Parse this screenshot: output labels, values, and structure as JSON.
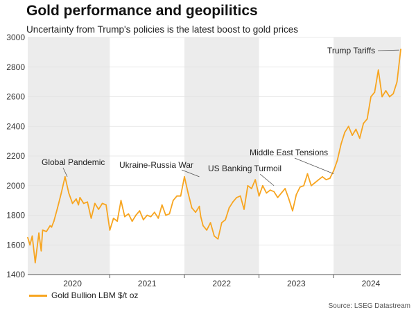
{
  "title": "Gold performance and geopilitics",
  "subtitle": "Uncertainty from Trump's policies is the latest boost to gold prices",
  "source": "Source: LSEG Datastream",
  "colors": {
    "line": "#f7a520",
    "shade": "#ececec",
    "grid": "#e2e2e2",
    "axis": "#555555"
  },
  "chart_data": {
    "type": "line",
    "title": "Gold performance and geopilitics",
    "xlabel": "",
    "ylabel": "",
    "x_range": [
      2019.9,
      2024.9
    ],
    "ylim": [
      1400,
      3000
    ],
    "yticks": [
      1400,
      1600,
      1800,
      2000,
      2200,
      2400,
      2600,
      2800,
      3000
    ],
    "grid": true,
    "legend_position": "bottom-left",
    "xticks": [
      {
        "label": "2020",
        "center": 2020.5
      },
      {
        "label": "2021",
        "center": 2021.5
      },
      {
        "label": "2022",
        "center": 2022.5
      },
      {
        "label": "2023",
        "center": 2023.5
      },
      {
        "label": "2024",
        "center": 2024.5
      }
    ],
    "shaded_periods": [
      [
        2019.9,
        2021.0
      ],
      [
        2022.0,
        2023.0
      ],
      [
        2024.0,
        2024.9
      ]
    ],
    "series": [
      {
        "name": "Gold Bullion LBM $/t oz",
        "x": [
          2019.9,
          2019.93,
          2019.96,
          2020.0,
          2020.05,
          2020.08,
          2020.1,
          2020.15,
          2020.2,
          2020.22,
          2020.25,
          2020.3,
          2020.35,
          2020.4,
          2020.45,
          2020.5,
          2020.55,
          2020.58,
          2020.6,
          2020.65,
          2020.7,
          2020.75,
          2020.8,
          2020.85,
          2020.9,
          2020.95,
          2021.0,
          2021.05,
          2021.1,
          2021.15,
          2021.2,
          2021.25,
          2021.3,
          2021.35,
          2021.4,
          2021.45,
          2021.5,
          2021.55,
          2021.6,
          2021.65,
          2021.7,
          2021.75,
          2021.8,
          2021.85,
          2021.9,
          2021.95,
          2022.0,
          2022.05,
          2022.1,
          2022.15,
          2022.2,
          2022.22,
          2022.25,
          2022.3,
          2022.35,
          2022.4,
          2022.45,
          2022.5,
          2022.55,
          2022.6,
          2022.65,
          2022.7,
          2022.75,
          2022.8,
          2022.85,
          2022.9,
          2022.95,
          2023.0,
          2023.05,
          2023.1,
          2023.15,
          2023.2,
          2023.25,
          2023.3,
          2023.35,
          2023.4,
          2023.45,
          2023.5,
          2023.55,
          2023.6,
          2023.65,
          2023.7,
          2023.75,
          2023.8,
          2023.85,
          2023.9,
          2023.95,
          2024.0,
          2024.05,
          2024.1,
          2024.15,
          2024.2,
          2024.25,
          2024.3,
          2024.35,
          2024.4,
          2024.45,
          2024.5,
          2024.55,
          2024.6,
          2024.65,
          2024.7,
          2024.75,
          2024.8,
          2024.85,
          2024.9
        ],
        "values": [
          1650,
          1600,
          1660,
          1480,
          1680,
          1560,
          1700,
          1690,
          1730,
          1720,
          1760,
          1850,
          1950,
          2060,
          1950,
          1880,
          1910,
          1870,
          1920,
          1880,
          1890,
          1780,
          1880,
          1840,
          1880,
          1870,
          1700,
          1780,
          1760,
          1900,
          1790,
          1810,
          1760,
          1800,
          1830,
          1770,
          1800,
          1790,
          1820,
          1780,
          1870,
          1800,
          1810,
          1900,
          1930,
          1930,
          2060,
          1950,
          1850,
          1820,
          1860,
          1790,
          1730,
          1700,
          1750,
          1660,
          1640,
          1750,
          1770,
          1850,
          1890,
          1920,
          1930,
          1840,
          2000,
          1980,
          2040,
          1930,
          2000,
          1950,
          1970,
          1960,
          1920,
          1950,
          1980,
          1910,
          1830,
          1940,
          1990,
          2000,
          2080,
          2000,
          2020,
          2040,
          2060,
          2040,
          2050,
          2100,
          2170,
          2280,
          2360,
          2400,
          2340,
          2380,
          2320,
          2420,
          2450,
          2600,
          2630,
          2780,
          2600,
          2640,
          2600,
          2620,
          2700,
          2920
        ]
      }
    ],
    "annotations": [
      {
        "text": "Global Pandemic",
        "x": 2020.43,
        "y": 2060
      },
      {
        "text": "Ukraine-Russia War",
        "x": 2022.2,
        "y": 2060
      },
      {
        "text": "US Banking Turmoil",
        "x": 2023.2,
        "y": 2000
      },
      {
        "text": "Middle East Tensions",
        "x": 2024.0,
        "y": 2080
      },
      {
        "text": "Trump Tariffs",
        "x": 2024.88,
        "y": 2915
      }
    ]
  }
}
